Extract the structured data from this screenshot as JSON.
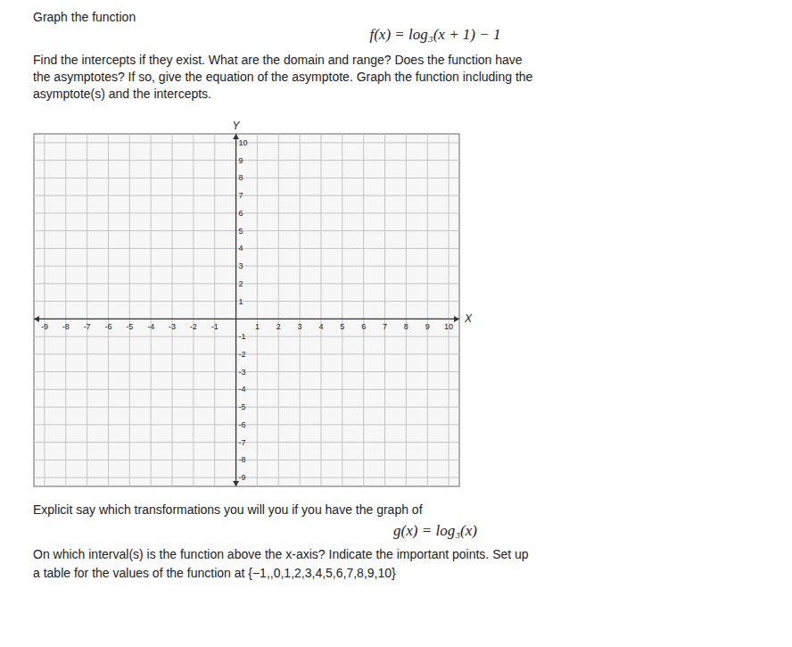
{
  "chart_data": {
    "type": "plane",
    "title": "Graph the function",
    "subtitle": "f(x) = log₃(x + 1) − 1",
    "annotations": [
      "Find the intercepts if they exist. What are the domain and range? Does the function have",
      "the asymptotes? If so, give the equation of the asymptote. Graph the function including the",
      "asymptote(s) and the intercepts.",
      "Explicit say which transformations you will you if you have the graph of",
      "g(x) = log₃(x)",
      "On which interval(s) is the function above the x-axis? Indicate the important points. Set up",
      "a table for the values of the function at {−1,,0,1,2,3,4,5,6,7,8,9,10}"
    ],
    "x_label": "X",
    "y_label": "Y",
    "xlim": [
      -9.5,
      10.5
    ],
    "ylim": [
      -9.5,
      10.5
    ],
    "xticks": [
      -9,
      -8,
      -7,
      -6,
      -5,
      -4,
      -3,
      -2,
      -1,
      1,
      2,
      3,
      4,
      5,
      6,
      7,
      8,
      9,
      10
    ],
    "yticks": [
      -9,
      -8,
      -7,
      -6,
      -5,
      -4,
      -3,
      -2,
      -1,
      1,
      2,
      3,
      4,
      5,
      6,
      7,
      8,
      9,
      10
    ],
    "grid": true
  }
}
